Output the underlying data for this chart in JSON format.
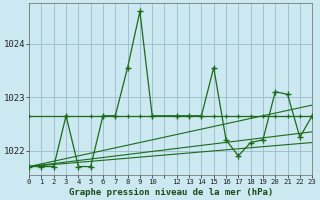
{
  "title": "Graphe pression niveau de la mer (hPa)",
  "bg_color": "#cce8f0",
  "grid_color": "#99bbcc",
  "line_color": "#1a6b1a",
  "xlim": [
    0,
    23
  ],
  "ylim": [
    1021.55,
    1024.75
  ],
  "yticks": [
    1022,
    1023,
    1024
  ],
  "xtick_labels": [
    "0",
    "1",
    "2",
    "3",
    "4",
    "5",
    "6",
    "7",
    "8",
    "9",
    "10",
    "",
    "12",
    "13",
    "14",
    "15",
    "16",
    "17",
    "18",
    "19",
    "20",
    "21",
    "22",
    "23"
  ],
  "xtick_positions": [
    0,
    1,
    2,
    3,
    4,
    5,
    6,
    7,
    8,
    9,
    10,
    11,
    12,
    13,
    14,
    15,
    16,
    17,
    18,
    19,
    20,
    21,
    22,
    23
  ],
  "jagged_x": [
    0,
    1,
    2,
    3,
    4,
    5,
    6,
    7,
    8,
    9,
    10,
    12,
    13,
    14,
    15,
    16,
    17,
    18,
    19,
    20,
    21,
    22,
    23
  ],
  "jagged_y": [
    1021.7,
    1021.7,
    1021.7,
    1022.65,
    1021.7,
    1021.7,
    1022.65,
    1022.65,
    1023.55,
    1024.6,
    1022.65,
    1022.65,
    1022.65,
    1022.65,
    1023.55,
    1022.2,
    1021.9,
    1022.15,
    1022.2,
    1023.1,
    1023.05,
    1022.25,
    1022.65
  ],
  "flat_x": [
    0,
    3,
    5,
    6,
    7,
    8,
    9,
    10,
    12,
    13,
    14,
    15,
    16,
    17,
    18,
    19,
    20,
    21,
    22,
    23
  ],
  "flat_y": [
    1022.65,
    1022.65,
    1022.65,
    1022.65,
    1022.65,
    1022.65,
    1022.65,
    1022.65,
    1022.65,
    1022.65,
    1022.65,
    1022.65,
    1022.65,
    1022.65,
    1022.65,
    1022.65,
    1022.65,
    1022.65,
    1022.65,
    1022.65
  ],
  "trend1_x": [
    0,
    23
  ],
  "trend1_y": [
    1021.7,
    1022.85
  ],
  "trend2_x": [
    0,
    23
  ],
  "trend2_y": [
    1021.7,
    1022.35
  ],
  "trend3_x": [
    0,
    23
  ],
  "trend3_y": [
    1021.7,
    1022.15
  ]
}
